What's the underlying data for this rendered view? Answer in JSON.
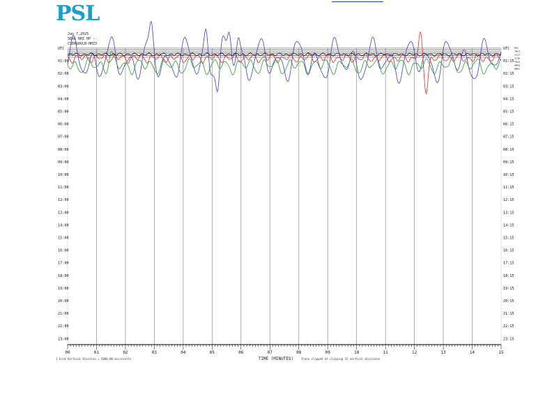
{
  "header": {
    "date": "Jan 7,2025",
    "station": "SERG HHZ HP --",
    "channel": "CSERGOOLB-HHZ3",
    "logo_text": "PSL"
  },
  "colors": {
    "blue": "#3b3bd0",
    "red": "#e02a2a",
    "green": "#2a9a2a",
    "black": "#111111",
    "grid": "#8c8c8c"
  },
  "chart_data": {
    "type": "line",
    "title": "",
    "xlabel": "TIME (MINUTES)",
    "xlabel_note": "Trace clipped at clipping 15 vertical divisions",
    "footnote": "1 Grid Vertical Division = 5000.00 microvolts",
    "x_ticks": [
      "00",
      "01",
      "02",
      "03",
      "04",
      "05",
      "06",
      "07",
      "08",
      "09",
      "10",
      "11",
      "12",
      "13",
      "14",
      "15"
    ],
    "xlim": [
      0,
      15
    ],
    "left_hour_labels": [
      "UTC",
      "01:00",
      "02:00",
      "03:00",
      "04:00",
      "05:00",
      "06:00",
      "07:00",
      "08:00",
      "09:00",
      "10:00",
      "11:00",
      "12:00",
      "13:00",
      "14:00",
      "15:00",
      "16:00",
      "17:00",
      "18:00",
      "19:00",
      "20:00",
      "21:00",
      "22:00",
      "23:00"
    ],
    "right_hour_labels": [
      "UTC",
      "01:15",
      "02:15",
      "03:15",
      "04:15",
      "05:15",
      "06:15",
      "07:15",
      "08:15",
      "09:15",
      "10:15",
      "11:15",
      "12:15",
      "13:15",
      "14:15",
      "15:15",
      "16:15",
      "17:15",
      "18:15",
      "19:15",
      "20:15",
      "21:15",
      "22:15",
      "23:15"
    ],
    "right_top_labels": [
      "MSC",
      "TMCZ",
      "TCZT",
      "TCZ6",
      "TRSG",
      "RMSQ",
      "RMES"
    ],
    "grid": true,
    "series": [
      {
        "color": "blue",
        "row": 1.0,
        "amplitude": 60,
        "freq": 1.55,
        "peaks": [
          [
            2.9,
            -55
          ],
          [
            4.8,
            -72
          ],
          [
            5.6,
            -78
          ],
          [
            5.9,
            -60
          ],
          [
            5.2,
            70
          ]
        ]
      },
      {
        "color": "green",
        "row": 1.4,
        "amplitude": 22,
        "freq": 2.3,
        "peaks": [
          [
            1.5,
            -30
          ]
        ]
      },
      {
        "color": "red",
        "row": 0.8,
        "amplitude": 12,
        "freq": 3.1,
        "peaks": [
          [
            12.2,
            -55
          ],
          [
            12.4,
            80
          ]
        ]
      },
      {
        "color": "black",
        "row": 0.5,
        "amplitude": 4,
        "freq": 4.0,
        "peaks": []
      }
    ]
  }
}
